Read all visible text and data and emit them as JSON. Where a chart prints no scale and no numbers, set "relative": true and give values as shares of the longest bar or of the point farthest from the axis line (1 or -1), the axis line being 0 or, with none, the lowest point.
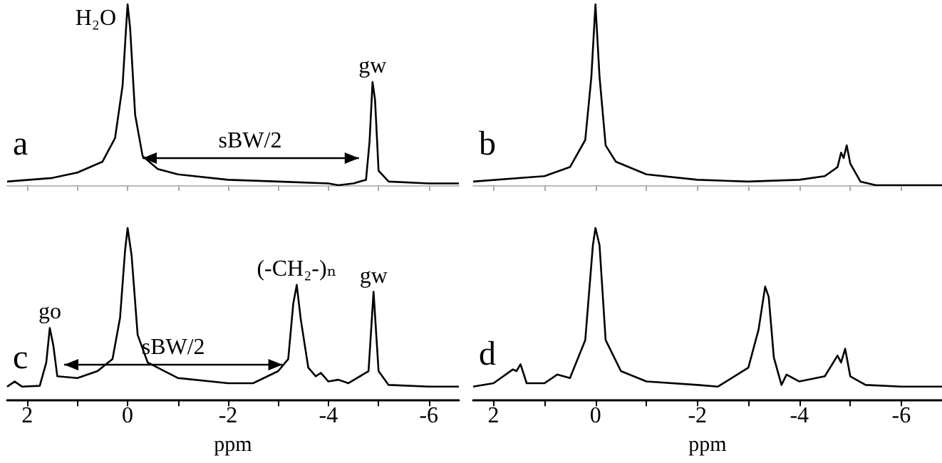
{
  "chart_data": [
    {
      "type": "line",
      "relative": true,
      "xlim": [
        2.4,
        -6.6
      ],
      "xticks": [
        {
          "value": 2,
          "label": null
        },
        {
          "value": 1,
          "label": null
        },
        {
          "value": 0,
          "label": null
        },
        {
          "value": -1,
          "label": null
        },
        {
          "value": -2,
          "label": null
        },
        {
          "value": -3,
          "label": null
        },
        {
          "value": -4,
          "label": null
        },
        {
          "value": -5,
          "label": null
        },
        {
          "value": -6,
          "label": null
        }
      ],
      "tick_labels": false,
      "series": [
        {
          "color": "#000000",
          "x": [
            2.4,
            1.5,
            1.0,
            0.5,
            0.25,
            0.1,
            0.03,
            0,
            -0.05,
            -0.15,
            -0.3,
            -0.6,
            -1,
            -2,
            -3,
            -4,
            -4.2,
            -4.5,
            -4.75,
            -4.82,
            -4.88,
            -4.93,
            -5.0,
            -5.2,
            -6,
            -6.6
          ],
          "values": [
            0.02,
            0.04,
            0.07,
            0.13,
            0.26,
            0.55,
            0.87,
            1,
            0.87,
            0.39,
            0.16,
            0.09,
            0.06,
            0.03,
            0.02,
            0.01,
            0,
            0.01,
            0.03,
            0.24,
            0.57,
            0.47,
            0.08,
            0.02,
            0.01,
            0.01
          ]
        }
      ],
      "annotations": [
        "a",
        {
          "text": "H₂O",
          "x": 0,
          "y": 1
        },
        "sBW/2",
        {
          "text": "gw",
          "x": -4.88,
          "y": 0.57
        }
      ]
    },
    {
      "type": "line",
      "relative": true,
      "xlim": [
        2.4,
        -6.8
      ],
      "xticks": [
        {
          "value": 2,
          "label": null
        },
        {
          "value": 1,
          "label": null
        },
        {
          "value": 0,
          "label": null
        },
        {
          "value": -1,
          "label": null
        },
        {
          "value": -2,
          "label": null
        },
        {
          "value": -3,
          "label": null
        },
        {
          "value": -4,
          "label": null
        },
        {
          "value": -5,
          "label": null
        },
        {
          "value": -6,
          "label": null
        }
      ],
      "tick_labels": false,
      "series": [
        {
          "color": "#000000",
          "x": [
            2.4,
            1.0,
            0.5,
            0.2,
            0.08,
            0,
            -0.08,
            -0.2,
            -0.4,
            -1,
            -2,
            -3,
            -4,
            -4.5,
            -4.75,
            -4.82,
            -4.87,
            -4.93,
            -5.0,
            -5.2,
            -5.5,
            -6.8
          ],
          "values": [
            0.02,
            0.05,
            0.1,
            0.25,
            0.6,
            1,
            0.6,
            0.22,
            0.13,
            0.06,
            0.03,
            0.02,
            0.03,
            0.05,
            0.1,
            0.18,
            0.15,
            0.22,
            0.12,
            0.02,
            0,
            0
          ]
        }
      ],
      "annotations": [
        "b"
      ]
    },
    {
      "type": "line",
      "relative": true,
      "xlim": [
        2.4,
        -6.6
      ],
      "xticks": [
        2,
        {
          "value": 1,
          "label": null
        },
        0,
        {
          "value": -1,
          "label": null
        },
        -2,
        {
          "value": -3,
          "label": null
        },
        -4,
        {
          "value": -5,
          "label": null
        },
        -6
      ],
      "xlabel": "ppm",
      "tick_labels": "x",
      "series": [
        {
          "color": "#000000",
          "x": [
            2.4,
            2.25,
            2.1,
            1.75,
            1.62,
            1.55,
            1.48,
            1.4,
            1.0,
            0.6,
            0.3,
            0.15,
            0.05,
            0,
            -0.08,
            -0.2,
            -0.4,
            -1,
            -2,
            -2.5,
            -3.0,
            -3.2,
            -3.3,
            -3.37,
            -3.45,
            -3.6,
            -3.75,
            -3.85,
            -4.0,
            -4.2,
            -4.4,
            -4.8,
            -4.9,
            -5.0,
            -5.2,
            -6.0,
            -6.6
          ],
          "values": [
            0.08,
            0.11,
            0.08,
            0.085,
            0.22,
            0.42,
            0.32,
            0.14,
            0.13,
            0.17,
            0.24,
            0.48,
            0.87,
            1,
            0.84,
            0.38,
            0.22,
            0.13,
            0.1,
            0.1,
            0.17,
            0.24,
            0.56,
            0.67,
            0.47,
            0.19,
            0.14,
            0.16,
            0.11,
            0.12,
            0.1,
            0.17,
            0.63,
            0.17,
            0.09,
            0.08,
            0.08
          ]
        }
      ],
      "annotations": [
        "c",
        {
          "text": "go",
          "x": 1.55,
          "y": 0.42
        },
        "sBW/2",
        {
          "text": "(-CH₂-)ₙ",
          "x": -3.37,
          "y": 0.67
        },
        {
          "text": "gw",
          "x": -4.9,
          "y": 0.63
        }
      ]
    },
    {
      "type": "line",
      "relative": true,
      "xlim": [
        2.4,
        -6.8
      ],
      "xticks": [
        2,
        {
          "value": 1,
          "label": null
        },
        0,
        {
          "value": -1,
          "label": null
        },
        -2,
        {
          "value": -3,
          "label": null
        },
        -4,
        {
          "value": -5,
          "label": null
        },
        -6
      ],
      "xlabel": "ppm",
      "tick_labels": "x",
      "series": [
        {
          "color": "#000000",
          "x": [
            2.4,
            2.0,
            1.62,
            1.55,
            1.47,
            1.35,
            1.0,
            0.75,
            0.5,
            0.2,
            0.05,
            0,
            -0.08,
            -0.2,
            -0.5,
            -1,
            -2,
            -2.4,
            -3.0,
            -3.2,
            -3.33,
            -3.4,
            -3.5,
            -3.65,
            -3.75,
            -4.0,
            -4.5,
            -4.75,
            -4.82,
            -4.9,
            -5.0,
            -5.3,
            -6.0,
            -6.8
          ],
          "values": [
            0.08,
            0.1,
            0.18,
            0.17,
            0.21,
            0.1,
            0.1,
            0.15,
            0.13,
            0.35,
            0.9,
            1,
            0.9,
            0.35,
            0.17,
            0.11,
            0.09,
            0.08,
            0.19,
            0.41,
            0.66,
            0.6,
            0.25,
            0.09,
            0.15,
            0.11,
            0.14,
            0.26,
            0.22,
            0.3,
            0.14,
            0.09,
            0.08,
            0.08
          ]
        }
      ],
      "annotations": [
        "d"
      ]
    }
  ]
}
